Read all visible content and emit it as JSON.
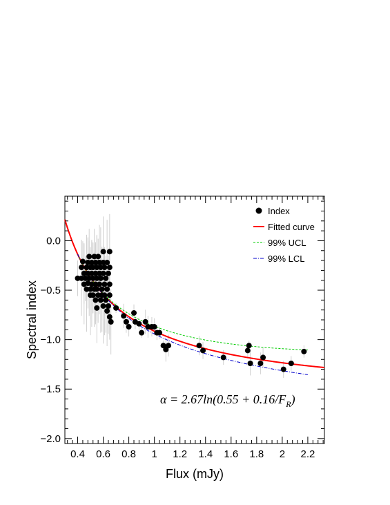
{
  "chart_data": {
    "type": "scatter",
    "xlabel": "Flux (mJy)",
    "ylabel": "Spectral index",
    "xlim": [
      0.3,
      2.33
    ],
    "ylim": [
      -2.05,
      0.45
    ],
    "xticks": [
      0.4,
      0.6,
      0.8,
      1.0,
      1.2,
      1.4,
      1.6,
      1.8,
      2.0,
      2.2
    ],
    "xtick_labels": [
      "0.4",
      "0.6",
      "0.8",
      "1",
      "1.2",
      "1.4",
      "1.6",
      "1.8",
      "2",
      "2.2"
    ],
    "yticks": [
      0.0,
      -0.5,
      -1.0,
      -1.5,
      -2.0
    ],
    "ytick_labels": [
      "0.0",
      "−0.5",
      "−1.0",
      "−1.5",
      "−2.0"
    ],
    "annotation": "α = 2.67ln(0.55 + 0.16/F",
    "annotation_sub": "R",
    "annotation_end": ")",
    "legend_position": "top-right",
    "legend": [
      {
        "label": "Index",
        "style": "marker",
        "color": "#000000"
      },
      {
        "label": "Fitted curve",
        "style": "solid",
        "color": "#ff0000"
      },
      {
        "label": "99% UCL",
        "style": "dashed",
        "color": "#00cc00"
      },
      {
        "label": "99% LCL",
        "style": "dashdot",
        "color": "#0000cc"
      }
    ],
    "fit": {
      "a": 2.67,
      "b": 0.55,
      "c": 0.16,
      "x_range": [
        0.3,
        2.33
      ]
    },
    "ucl": {
      "a": 2.67,
      "b": 0.55,
      "c": 0.16,
      "shift_scale": 0.16,
      "x_range": [
        0.4,
        2.2
      ]
    },
    "lcl": {
      "a": 2.67,
      "b": 0.55,
      "c": 0.16,
      "shift_scale": -0.09,
      "x_range": [
        0.4,
        2.2
      ]
    },
    "points": [
      {
        "x": 0.4,
        "y": -0.38
      },
      {
        "x": 0.43,
        "y": -0.27
      },
      {
        "x": 0.43,
        "y": -0.38
      },
      {
        "x": 0.44,
        "y": -0.21
      },
      {
        "x": 0.45,
        "y": -0.33
      },
      {
        "x": 0.45,
        "y": -0.44
      },
      {
        "x": 0.46,
        "y": -0.38
      },
      {
        "x": 0.47,
        "y": -0.27
      },
      {
        "x": 0.47,
        "y": -0.49
      },
      {
        "x": 0.48,
        "y": -0.22
      },
      {
        "x": 0.48,
        "y": -0.33
      },
      {
        "x": 0.48,
        "y": -0.43
      },
      {
        "x": 0.49,
        "y": -0.16
      },
      {
        "x": 0.49,
        "y": -0.38
      },
      {
        "x": 0.5,
        "y": -0.27
      },
      {
        "x": 0.5,
        "y": -0.49
      },
      {
        "x": 0.5,
        "y": -0.55
      },
      {
        "x": 0.51,
        "y": -0.22
      },
      {
        "x": 0.51,
        "y": -0.33
      },
      {
        "x": 0.51,
        "y": -0.44
      },
      {
        "x": 0.52,
        "y": -0.27
      },
      {
        "x": 0.52,
        "y": -0.38
      },
      {
        "x": 0.52,
        "y": -0.55
      },
      {
        "x": 0.53,
        "y": -0.16
      },
      {
        "x": 0.53,
        "y": -0.49
      },
      {
        "x": 0.54,
        "y": -0.22
      },
      {
        "x": 0.54,
        "y": -0.33
      },
      {
        "x": 0.54,
        "y": -0.44
      },
      {
        "x": 0.54,
        "y": -0.6
      },
      {
        "x": 0.55,
        "y": -0.27
      },
      {
        "x": 0.55,
        "y": -0.38
      },
      {
        "x": 0.55,
        "y": -0.49
      },
      {
        "x": 0.55,
        "y": -0.68
      },
      {
        "x": 0.56,
        "y": -0.16
      },
      {
        "x": 0.56,
        "y": -0.55
      },
      {
        "x": 0.57,
        "y": -0.22
      },
      {
        "x": 0.57,
        "y": -0.33
      },
      {
        "x": 0.57,
        "y": -0.44
      },
      {
        "x": 0.58,
        "y": -0.27
      },
      {
        "x": 0.58,
        "y": -0.38
      },
      {
        "x": 0.58,
        "y": -0.6
      },
      {
        "x": 0.59,
        "y": -0.49
      },
      {
        "x": 0.59,
        "y": -0.55
      },
      {
        "x": 0.6,
        "y": -0.11
      },
      {
        "x": 0.6,
        "y": -0.22
      },
      {
        "x": 0.6,
        "y": -0.33
      },
      {
        "x": 0.6,
        "y": -0.66
      },
      {
        "x": 0.61,
        "y": -0.27
      },
      {
        "x": 0.61,
        "y": -0.44
      },
      {
        "x": 0.61,
        "y": -0.55
      },
      {
        "x": 0.62,
        "y": -0.38
      },
      {
        "x": 0.62,
        "y": -0.6
      },
      {
        "x": 0.63,
        "y": -0.22
      },
      {
        "x": 0.63,
        "y": -0.49
      },
      {
        "x": 0.63,
        "y": -0.71
      },
      {
        "x": 0.64,
        "y": -0.33
      },
      {
        "x": 0.64,
        "y": -0.66
      },
      {
        "x": 0.65,
        "y": -0.11
      },
      {
        "x": 0.65,
        "y": -0.27
      },
      {
        "x": 0.65,
        "y": -0.44
      },
      {
        "x": 0.65,
        "y": -0.55
      },
      {
        "x": 0.65,
        "y": -0.77
      },
      {
        "x": 0.66,
        "y": -0.82
      },
      {
        "x": 0.7,
        "y": -0.68
      },
      {
        "x": 0.76,
        "y": -0.76
      },
      {
        "x": 0.78,
        "y": -0.82
      },
      {
        "x": 0.8,
        "y": -0.87
      },
      {
        "x": 0.84,
        "y": -0.73
      },
      {
        "x": 0.85,
        "y": -0.82
      },
      {
        "x": 0.88,
        "y": -0.84
      },
      {
        "x": 0.9,
        "y": -0.93
      },
      {
        "x": 0.93,
        "y": -0.82
      },
      {
        "x": 0.95,
        "y": -0.87
      },
      {
        "x": 0.98,
        "y": -0.87
      },
      {
        "x": 1.0,
        "y": -0.87
      },
      {
        "x": 1.02,
        "y": -0.93
      },
      {
        "x": 1.04,
        "y": -0.93
      },
      {
        "x": 1.07,
        "y": -1.06
      },
      {
        "x": 1.09,
        "y": -1.1
      },
      {
        "x": 1.11,
        "y": -1.06
      },
      {
        "x": 1.35,
        "y": -1.06
      },
      {
        "x": 1.38,
        "y": -1.11
      },
      {
        "x": 1.54,
        "y": -1.18
      },
      {
        "x": 1.73,
        "y": -1.11
      },
      {
        "x": 1.74,
        "y": -1.06
      },
      {
        "x": 1.75,
        "y": -1.24
      },
      {
        "x": 1.83,
        "y": -1.24
      },
      {
        "x": 1.85,
        "y": -1.18
      },
      {
        "x": 2.01,
        "y": -1.3
      },
      {
        "x": 2.07,
        "y": -1.24
      },
      {
        "x": 2.17,
        "y": -1.12
      }
    ]
  }
}
